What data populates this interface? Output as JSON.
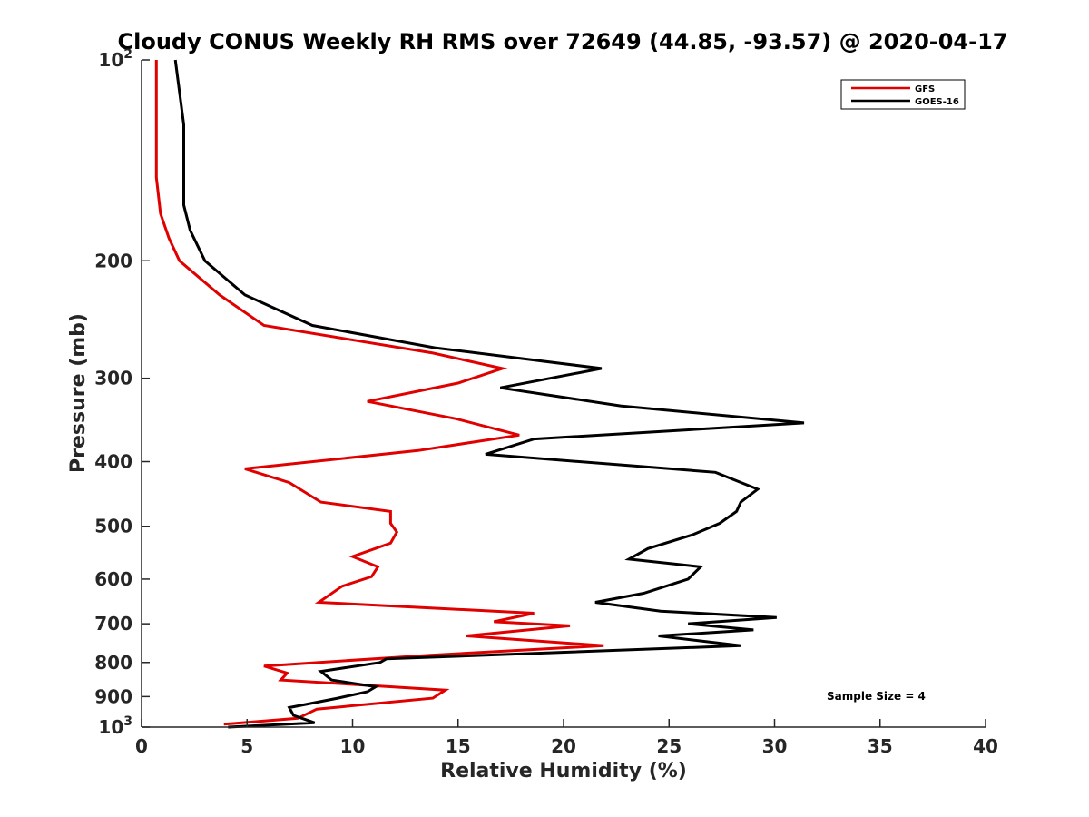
{
  "chart_data": {
    "type": "line",
    "title": "Cloudy CONUS Weekly RH RMS over 72649 (44.85, -93.57) @ 2020-04-17",
    "xlabel": "Relative Humidity (%)",
    "ylabel": "Pressure (mb)",
    "xlim": [
      0,
      40
    ],
    "ylim": [
      100,
      1000
    ],
    "y_scale": "log",
    "y_reversed": true,
    "grid": false,
    "legend_position": "top-right",
    "annotation": "Sample Size = 4",
    "x_ticks": [
      "0",
      "5",
      "10",
      "15",
      "20",
      "25",
      "30",
      "35",
      "40"
    ],
    "y_ticks": [
      {
        "value": 100,
        "base": "10",
        "exp": "2"
      },
      {
        "value": 200,
        "label": "200"
      },
      {
        "value": 300,
        "label": "300"
      },
      {
        "value": 400,
        "label": "400"
      },
      {
        "value": 500,
        "label": "500"
      },
      {
        "value": 600,
        "label": "600"
      },
      {
        "value": 700,
        "label": "700"
      },
      {
        "value": 800,
        "label": "800"
      },
      {
        "value": 900,
        "label": "900"
      },
      {
        "value": 1000,
        "base": "10",
        "exp": "3"
      }
    ],
    "series": [
      {
        "name": "GFS",
        "color": "#e00000",
        "points": [
          [
            0.7,
            100
          ],
          [
            0.7,
            150
          ],
          [
            0.9,
            170
          ],
          [
            1.3,
            185
          ],
          [
            1.8,
            200
          ],
          [
            3.7,
            225
          ],
          [
            5.8,
            250
          ],
          [
            13.8,
            275
          ],
          [
            17.1,
            290
          ],
          [
            15.0,
            305
          ],
          [
            10.7,
            325
          ],
          [
            14.9,
            345
          ],
          [
            17.9,
            365
          ],
          [
            13.1,
            385
          ],
          [
            4.9,
            410
          ],
          [
            7.0,
            430
          ],
          [
            8.5,
            460
          ],
          [
            11.8,
            475
          ],
          [
            11.8,
            495
          ],
          [
            12.1,
            510
          ],
          [
            11.8,
            530
          ],
          [
            10.0,
            555
          ],
          [
            11.2,
            575
          ],
          [
            10.9,
            595
          ],
          [
            9.5,
            615
          ],
          [
            8.4,
            650
          ],
          [
            18.6,
            675
          ],
          [
            16.7,
            695
          ],
          [
            20.3,
            705
          ],
          [
            15.4,
            730
          ],
          [
            21.9,
            755
          ],
          [
            13.7,
            780
          ],
          [
            5.8,
            810
          ],
          [
            6.9,
            830
          ],
          [
            6.6,
            850
          ],
          [
            14.4,
            880
          ],
          [
            13.8,
            905
          ],
          [
            8.3,
            940
          ],
          [
            7.4,
            970
          ],
          [
            3.9,
            990
          ]
        ]
      },
      {
        "name": "GOES-16",
        "color": "#000000",
        "points": [
          [
            1.6,
            100
          ],
          [
            2.0,
            125
          ],
          [
            2.0,
            165
          ],
          [
            2.3,
            180
          ],
          [
            3.0,
            200
          ],
          [
            4.9,
            225
          ],
          [
            8.1,
            250
          ],
          [
            13.9,
            270
          ],
          [
            21.8,
            290
          ],
          [
            17.0,
            310
          ],
          [
            22.7,
            330
          ],
          [
            31.4,
            350
          ],
          [
            18.6,
            370
          ],
          [
            16.3,
            390
          ],
          [
            27.2,
            415
          ],
          [
            29.2,
            440
          ],
          [
            28.4,
            460
          ],
          [
            28.2,
            475
          ],
          [
            27.4,
            495
          ],
          [
            26.1,
            515
          ],
          [
            24.0,
            540
          ],
          [
            23.1,
            560
          ],
          [
            26.5,
            575
          ],
          [
            25.9,
            600
          ],
          [
            23.8,
            630
          ],
          [
            21.5,
            650
          ],
          [
            24.6,
            670
          ],
          [
            30.1,
            685
          ],
          [
            25.9,
            700
          ],
          [
            29.0,
            715
          ],
          [
            24.5,
            730
          ],
          [
            28.4,
            755
          ],
          [
            11.6,
            790
          ],
          [
            11.3,
            800
          ],
          [
            8.5,
            825
          ],
          [
            9.0,
            850
          ],
          [
            11.1,
            870
          ],
          [
            10.7,
            885
          ],
          [
            9.3,
            905
          ],
          [
            7.0,
            935
          ],
          [
            7.2,
            960
          ],
          [
            8.2,
            985
          ],
          [
            4.1,
            1000
          ]
        ]
      }
    ]
  }
}
